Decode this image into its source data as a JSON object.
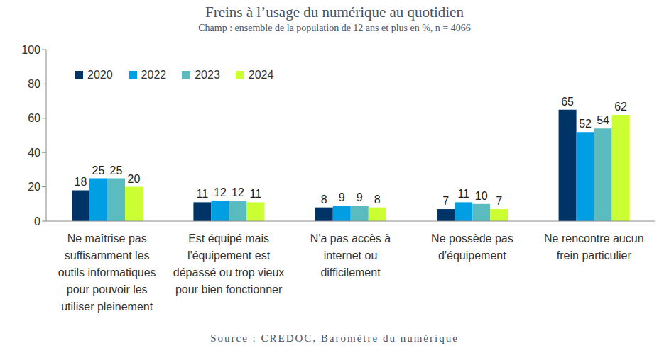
{
  "chart_data": {
    "type": "bar",
    "title": "Freins à l’usage du numérique au quotidien",
    "subtitle": "Champ : ensemble de la population de 12 ans et plus en %, n = 4066",
    "source": "Source : CREDOC, Baromètre du numérique",
    "categories": [
      "Ne maîtrise pas suffisamment les outils informatiques pour pouvoir les utiliser pleinement",
      "Est équipé mais l'équipement est dépassé ou trop vieux pour bien fonctionner",
      "N'a pas accès à internet ou difficilement",
      "Ne possède pas d'équipement",
      "Ne rencontre aucun frein particulier"
    ],
    "series": [
      {
        "name": "2020",
        "color": "#003366",
        "values": [
          18,
          11,
          8,
          7,
          65
        ]
      },
      {
        "name": "2022",
        "color": "#009fe3",
        "values": [
          25,
          12,
          9,
          11,
          52
        ]
      },
      {
        "name": "2023",
        "color": "#5bbcbf",
        "values": [
          25,
          12,
          9,
          10,
          54
        ]
      },
      {
        "name": "2024",
        "color": "#ccff33",
        "values": [
          20,
          11,
          8,
          7,
          62
        ]
      }
    ],
    "ylim": [
      0,
      100
    ],
    "yticks": [
      0,
      20,
      40,
      60,
      80,
      100
    ],
    "grid": false,
    "legend": "upper left",
    "data_labels": true
  }
}
